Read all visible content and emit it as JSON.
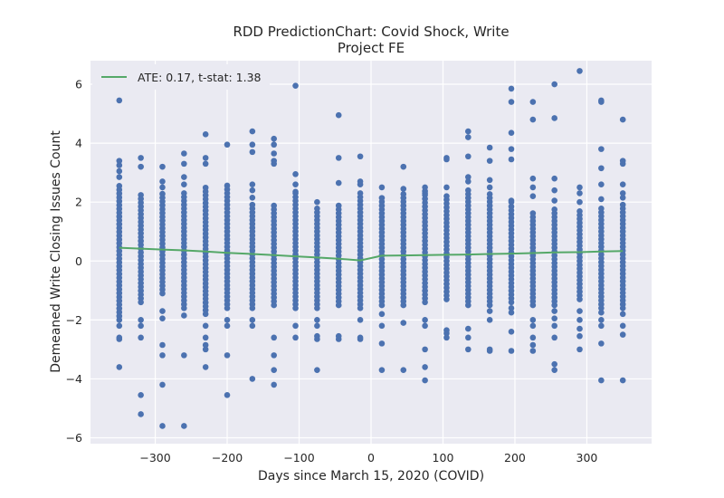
{
  "chart_data": {
    "type": "scatter",
    "title_lines": [
      "RDD PredictionChart: Covid Shock, Write",
      "Project FE"
    ],
    "xlabel": "Days since March 15, 2020 (COVID)",
    "ylabel": "Demeaned Write Closing Issues Count",
    "xlim": [
      -390,
      390
    ],
    "ylim": [
      -6.2,
      6.8
    ],
    "xticks": [
      -300,
      -200,
      -100,
      0,
      100,
      200,
      300
    ],
    "xtick_labels": [
      "−300",
      "−200",
      "−100",
      "0",
      "100",
      "200",
      "300"
    ],
    "yticks": [
      -6,
      -4,
      -2,
      0,
      2,
      4,
      6
    ],
    "ytick_labels": [
      "−6",
      "−4",
      "−2",
      "0",
      "2",
      "4",
      "6"
    ],
    "grid": true,
    "background_color": "#EAEAF2",
    "legend_position": "top-left",
    "scatter": {
      "color": "#4C72B0",
      "columns": [
        {
          "x": -350,
          "core": [
            -2.0,
            2.6
          ],
          "extras": [
            5.45,
            3.4,
            3.25,
            3.05,
            2.85,
            -2.2,
            -2.6,
            -2.65,
            -3.6
          ]
        },
        {
          "x": -320,
          "core": [
            -1.4,
            2.3
          ],
          "extras": [
            3.5,
            3.2,
            -2.0,
            -2.2,
            -2.6,
            -4.55,
            -5.2
          ]
        },
        {
          "x": -290,
          "core": [
            -1.1,
            2.3
          ],
          "extras": [
            3.2,
            2.7,
            2.5,
            -1.7,
            -1.95,
            -2.85,
            -3.2,
            -4.2,
            -5.6
          ]
        },
        {
          "x": -260,
          "core": [
            -1.6,
            2.4
          ],
          "extras": [
            3.65,
            3.3,
            2.85,
            2.6,
            -1.85,
            -3.2,
            -5.6
          ]
        },
        {
          "x": -230,
          "core": [
            -1.8,
            2.6
          ],
          "extras": [
            4.3,
            3.5,
            3.3,
            -2.2,
            -2.6,
            -2.85,
            -3.0,
            -3.6
          ]
        },
        {
          "x": -200,
          "core": [
            -1.6,
            2.6
          ],
          "extras": [
            3.95,
            -2.0,
            -2.2,
            -3.2,
            -4.55
          ]
        },
        {
          "x": -165,
          "core": [
            -1.6,
            2.0
          ],
          "extras": [
            4.4,
            3.95,
            3.7,
            2.6,
            2.4,
            2.15,
            -2.0,
            -2.2,
            -4.0
          ]
        },
        {
          "x": -135,
          "core": [
            -1.5,
            1.9
          ],
          "extras": [
            4.15,
            3.95,
            3.65,
            3.4,
            3.3,
            -2.6,
            -3.2,
            -3.7,
            -4.2
          ]
        },
        {
          "x": -105,
          "core": [
            -1.6,
            2.4
          ],
          "extras": [
            5.95,
            2.95,
            2.6,
            2.35,
            -2.2,
            -2.6
          ]
        },
        {
          "x": -75,
          "core": [
            -1.6,
            1.8
          ],
          "extras": [
            2.0,
            -2.0,
            -2.2,
            -2.55,
            -2.65,
            -3.7
          ]
        },
        {
          "x": -45,
          "core": [
            -1.5,
            2.0
          ],
          "extras": [
            4.95,
            3.5,
            2.65,
            -2.55,
            -2.65
          ]
        },
        {
          "x": -15,
          "core": [
            -1.6,
            2.4
          ],
          "extras": [
            3.55,
            2.7,
            2.6,
            -2.0,
            -2.6,
            -2.65
          ]
        },
        {
          "x": 15,
          "core": [
            -1.5,
            2.2
          ],
          "extras": [
            2.5,
            -1.8,
            -2.2,
            -2.8,
            -3.7
          ]
        },
        {
          "x": 45,
          "core": [
            -1.5,
            2.3
          ],
          "extras": [
            3.2,
            2.45,
            -2.1,
            -3.7
          ]
        },
        {
          "x": 75,
          "core": [
            -1.4,
            2.4
          ],
          "extras": [
            2.5,
            2.3,
            -2.0,
            -2.2,
            -3.0,
            -3.6,
            -4.05
          ]
        },
        {
          "x": 105,
          "core": [
            -1.3,
            2.2
          ],
          "extras": [
            3.5,
            3.45,
            2.5,
            2.2,
            -2.35,
            -2.45,
            -2.6
          ]
        },
        {
          "x": 135,
          "core": [
            -1.5,
            2.4
          ],
          "extras": [
            4.4,
            4.2,
            3.55,
            2.85,
            2.7,
            -2.3,
            -2.6,
            -3.0
          ]
        },
        {
          "x": 165,
          "core": [
            -1.5,
            2.3
          ],
          "extras": [
            3.85,
            3.4,
            2.75,
            2.5,
            -1.7,
            -2.0,
            -3.0,
            -3.05
          ]
        },
        {
          "x": 195,
          "core": [
            -1.4,
            1.9
          ],
          "extras": [
            5.85,
            5.4,
            4.35,
            3.8,
            3.45,
            2.05,
            2.0,
            -1.6,
            -1.75,
            -2.4,
            -3.05
          ]
        },
        {
          "x": 225,
          "core": [
            -1.5,
            1.7
          ],
          "extras": [
            5.4,
            4.8,
            2.8,
            2.5,
            2.2,
            -2.0,
            -2.2,
            -2.6,
            -2.85,
            -3.05
          ]
        },
        {
          "x": 255,
          "core": [
            -1.5,
            1.8
          ],
          "extras": [
            6.0,
            4.85,
            2.8,
            2.4,
            2.05,
            -1.7,
            -1.95,
            -2.2,
            -2.6,
            -3.5,
            -3.7
          ]
        },
        {
          "x": 290,
          "core": [
            -1.3,
            1.8
          ],
          "extras": [
            6.45,
            2.5,
            2.3,
            2.0,
            -1.7,
            -2.0,
            -2.3,
            -2.55,
            -3.0
          ]
        },
        {
          "x": 320,
          "core": [
            -1.6,
            1.8
          ],
          "extras": [
            5.45,
            5.4,
            3.8,
            3.15,
            2.6,
            2.1,
            -1.75,
            -2.0,
            -2.2,
            -2.8,
            -4.05
          ]
        },
        {
          "x": 350,
          "core": [
            -1.6,
            2.0
          ],
          "extras": [
            4.8,
            3.4,
            3.3,
            2.6,
            2.3,
            2.15,
            -1.8,
            -2.2,
            -2.5,
            -4.05
          ]
        }
      ]
    },
    "series": [
      {
        "name": "ATE: 0.17, t-stat: 1.38",
        "type": "line",
        "color": "#55A868",
        "x": [
          -350,
          -320,
          -290,
          -260,
          -230,
          -200,
          -165,
          -135,
          -105,
          -75,
          -45,
          -15,
          15,
          45,
          75,
          105,
          135,
          165,
          195,
          225,
          255,
          290,
          320,
          350
        ],
        "y": [
          0.45,
          0.42,
          0.39,
          0.36,
          0.32,
          0.28,
          0.24,
          0.2,
          0.16,
          0.12,
          0.08,
          0.02,
          0.18,
          0.19,
          0.2,
          0.21,
          0.22,
          0.24,
          0.25,
          0.27,
          0.29,
          0.3,
          0.32,
          0.34
        ]
      }
    ]
  }
}
